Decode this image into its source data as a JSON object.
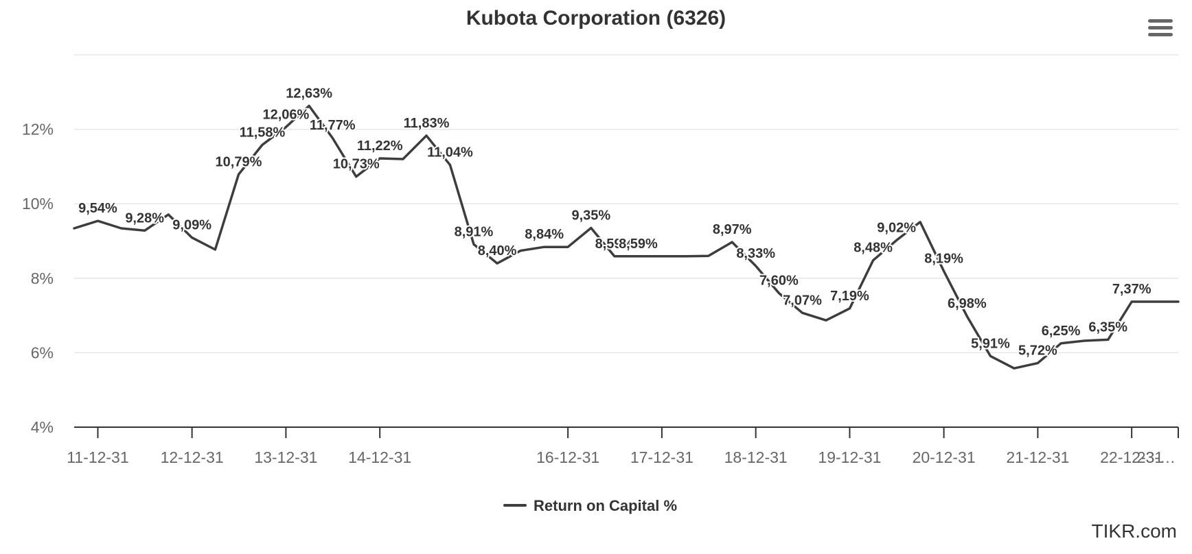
{
  "menu_icon": "hamburger-menu-icon",
  "credit": "TIKR.com",
  "colors": {
    "line": "#3d3d40",
    "text": "#333333",
    "axis_text": "#666666",
    "grid": "#e6e6e6"
  },
  "chart_data": {
    "type": "line",
    "title": "Kubota Corporation (6326)",
    "xlabel": "",
    "ylabel": "",
    "ylim": [
      4,
      14
    ],
    "y_ticks": [
      "4%",
      "6%",
      "8%",
      "10%",
      "12%"
    ],
    "x_ticks": [
      "11-12-31",
      "12-12-31",
      "13-12-31",
      "14-12-31",
      "16-12-31",
      "17-12-31",
      "18-12-31",
      "19-12-31",
      "20-12-31",
      "21-12-31",
      "22-12-31",
      "23-…"
    ],
    "grid": true,
    "legend_position": "bottom-center",
    "series": [
      {
        "name": "Return on Capital %",
        "x": [
          "11-09-30",
          "11-12-31",
          "12-03-31",
          "12-06-30",
          "12-09-30",
          "12-12-31",
          "13-03-31",
          "13-06-30",
          "13-09-30",
          "13-12-31",
          "14-03-31",
          "14-06-30",
          "14-09-30",
          "14-12-31",
          "15-03-31",
          "15-06-30",
          "15-09-30",
          "15-12-31",
          "16-03-31",
          "16-06-30",
          "16-09-30",
          "16-12-31",
          "17-03-31",
          "17-06-30",
          "17-09-30",
          "17-12-31",
          "18-03-31",
          "18-06-30",
          "18-09-30",
          "18-12-31",
          "19-03-31",
          "19-06-30",
          "19-09-30",
          "19-12-31",
          "20-03-31",
          "20-06-30",
          "20-09-30",
          "20-12-31",
          "21-03-31",
          "21-06-30",
          "21-09-30",
          "21-12-31",
          "22-03-31",
          "22-06-30",
          "22-09-30",
          "22-12-31",
          "23-03-31",
          "23-06-30"
        ],
        "values": [
          9.34,
          9.54,
          9.34,
          9.28,
          9.71,
          9.09,
          8.77,
          10.79,
          11.58,
          12.06,
          12.63,
          11.77,
          10.73,
          11.22,
          11.2,
          11.83,
          11.04,
          8.91,
          8.4,
          8.74,
          8.84,
          8.84,
          9.35,
          8.59,
          8.59,
          8.59,
          8.59,
          8.6,
          8.97,
          8.33,
          7.6,
          7.07,
          6.87,
          7.19,
          8.48,
          9.02,
          9.51,
          8.19,
          6.98,
          5.91,
          5.58,
          5.72,
          6.25,
          6.32,
          6.35,
          7.37,
          7.37,
          7.37
        ],
        "labels": [
          "",
          "9,54%",
          "",
          "9,28%",
          "",
          "9,09%",
          "",
          "10,79%",
          "11,58%",
          "12,06%",
          "12,63%",
          "11,77%",
          "10,73%",
          "11,22%",
          "",
          "11,83%",
          "11,04%",
          "8,91%",
          "8,40%",
          "",
          "8,84%",
          "",
          "9,35%",
          "8,59%",
          "8,59%",
          "",
          "",
          "",
          "8,97%",
          "8,33%",
          "7,60%",
          "7,07%",
          "",
          "7,19%",
          "8,48%",
          "9,02%",
          "",
          "8,19%",
          "6,98%",
          "5,91%",
          "",
          "5,72%",
          "6,25%",
          "",
          "6,35%",
          "7,37%",
          "",
          ""
        ]
      }
    ]
  }
}
